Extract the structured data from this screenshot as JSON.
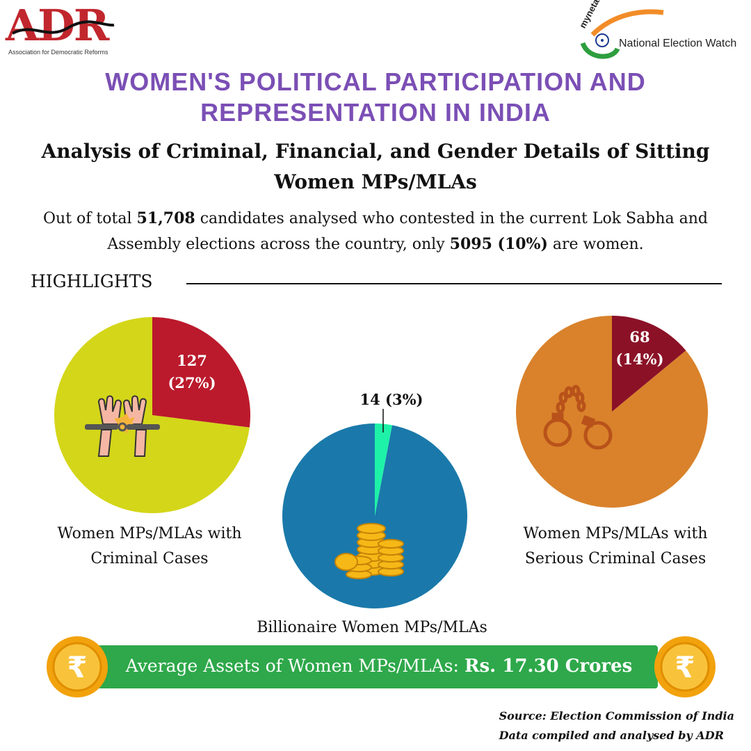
{
  "logos": {
    "adr": {
      "mark": "ADR",
      "full_name": "Association for Democratic Reforms"
    },
    "nem": {
      "myneta": "myneta.info",
      "name": "National Election Watch"
    }
  },
  "header": {
    "title": "WOMEN'S POLITICAL PARTICIPATION AND REPRESENTATION IN INDIA",
    "subtitle": "Analysis of Criminal, Financial, and Gender Details of Sitting Women MPs/MLAs"
  },
  "summary": {
    "pre1": "Out of total",
    "total": "51,708",
    "mid": "candidates analysed who contested in the current Lok Sabha and Assembly elections across the country, only",
    "women": "5095 (10%)",
    "post": "are women."
  },
  "highlights_label": "HIGHLIGHTS",
  "colors": {
    "title_purple": "#7b4fb5",
    "criminal_slice": "#bb1a2c",
    "criminal_rest": "#d4d619",
    "billionaire_slice": "#1ef2a8",
    "billionaire_rest": "#1a79aa",
    "serious_slice": "#8b1127",
    "serious_rest": "#d9822b",
    "banner_green": "#2ea84a"
  },
  "chart_data": [
    {
      "type": "pie",
      "title": "Women MPs/MLAs with Criminal Cases",
      "slices": [
        {
          "label": "Criminal Cases",
          "value": 27,
          "count": 127,
          "text_count": "127",
          "text_pct": "(27%)"
        },
        {
          "label": "Others",
          "value": 73
        }
      ]
    },
    {
      "type": "pie",
      "title": "Billionaire Women MPs/MLAs",
      "slices": [
        {
          "label": "Billionaire",
          "value": 3,
          "count": 14,
          "text": "14 (3%)"
        },
        {
          "label": "Others",
          "value": 97
        }
      ]
    },
    {
      "type": "pie",
      "title": "Women MPs/MLAs with Serious Criminal Cases",
      "slices": [
        {
          "label": "Serious Criminal Cases",
          "value": 14,
          "count": 68,
          "text_count": "68",
          "text_pct": "(14%)"
        },
        {
          "label": "Others",
          "value": 86
        }
      ]
    }
  ],
  "assets": {
    "label": "Average Assets of Women MPs/MLAs:",
    "value": "Rs. 17.30 Crores",
    "coin_symbol": "₹"
  },
  "source": {
    "line1": "Source: Election Commission of India",
    "line2": "Data compiled and analysed by ADR"
  }
}
